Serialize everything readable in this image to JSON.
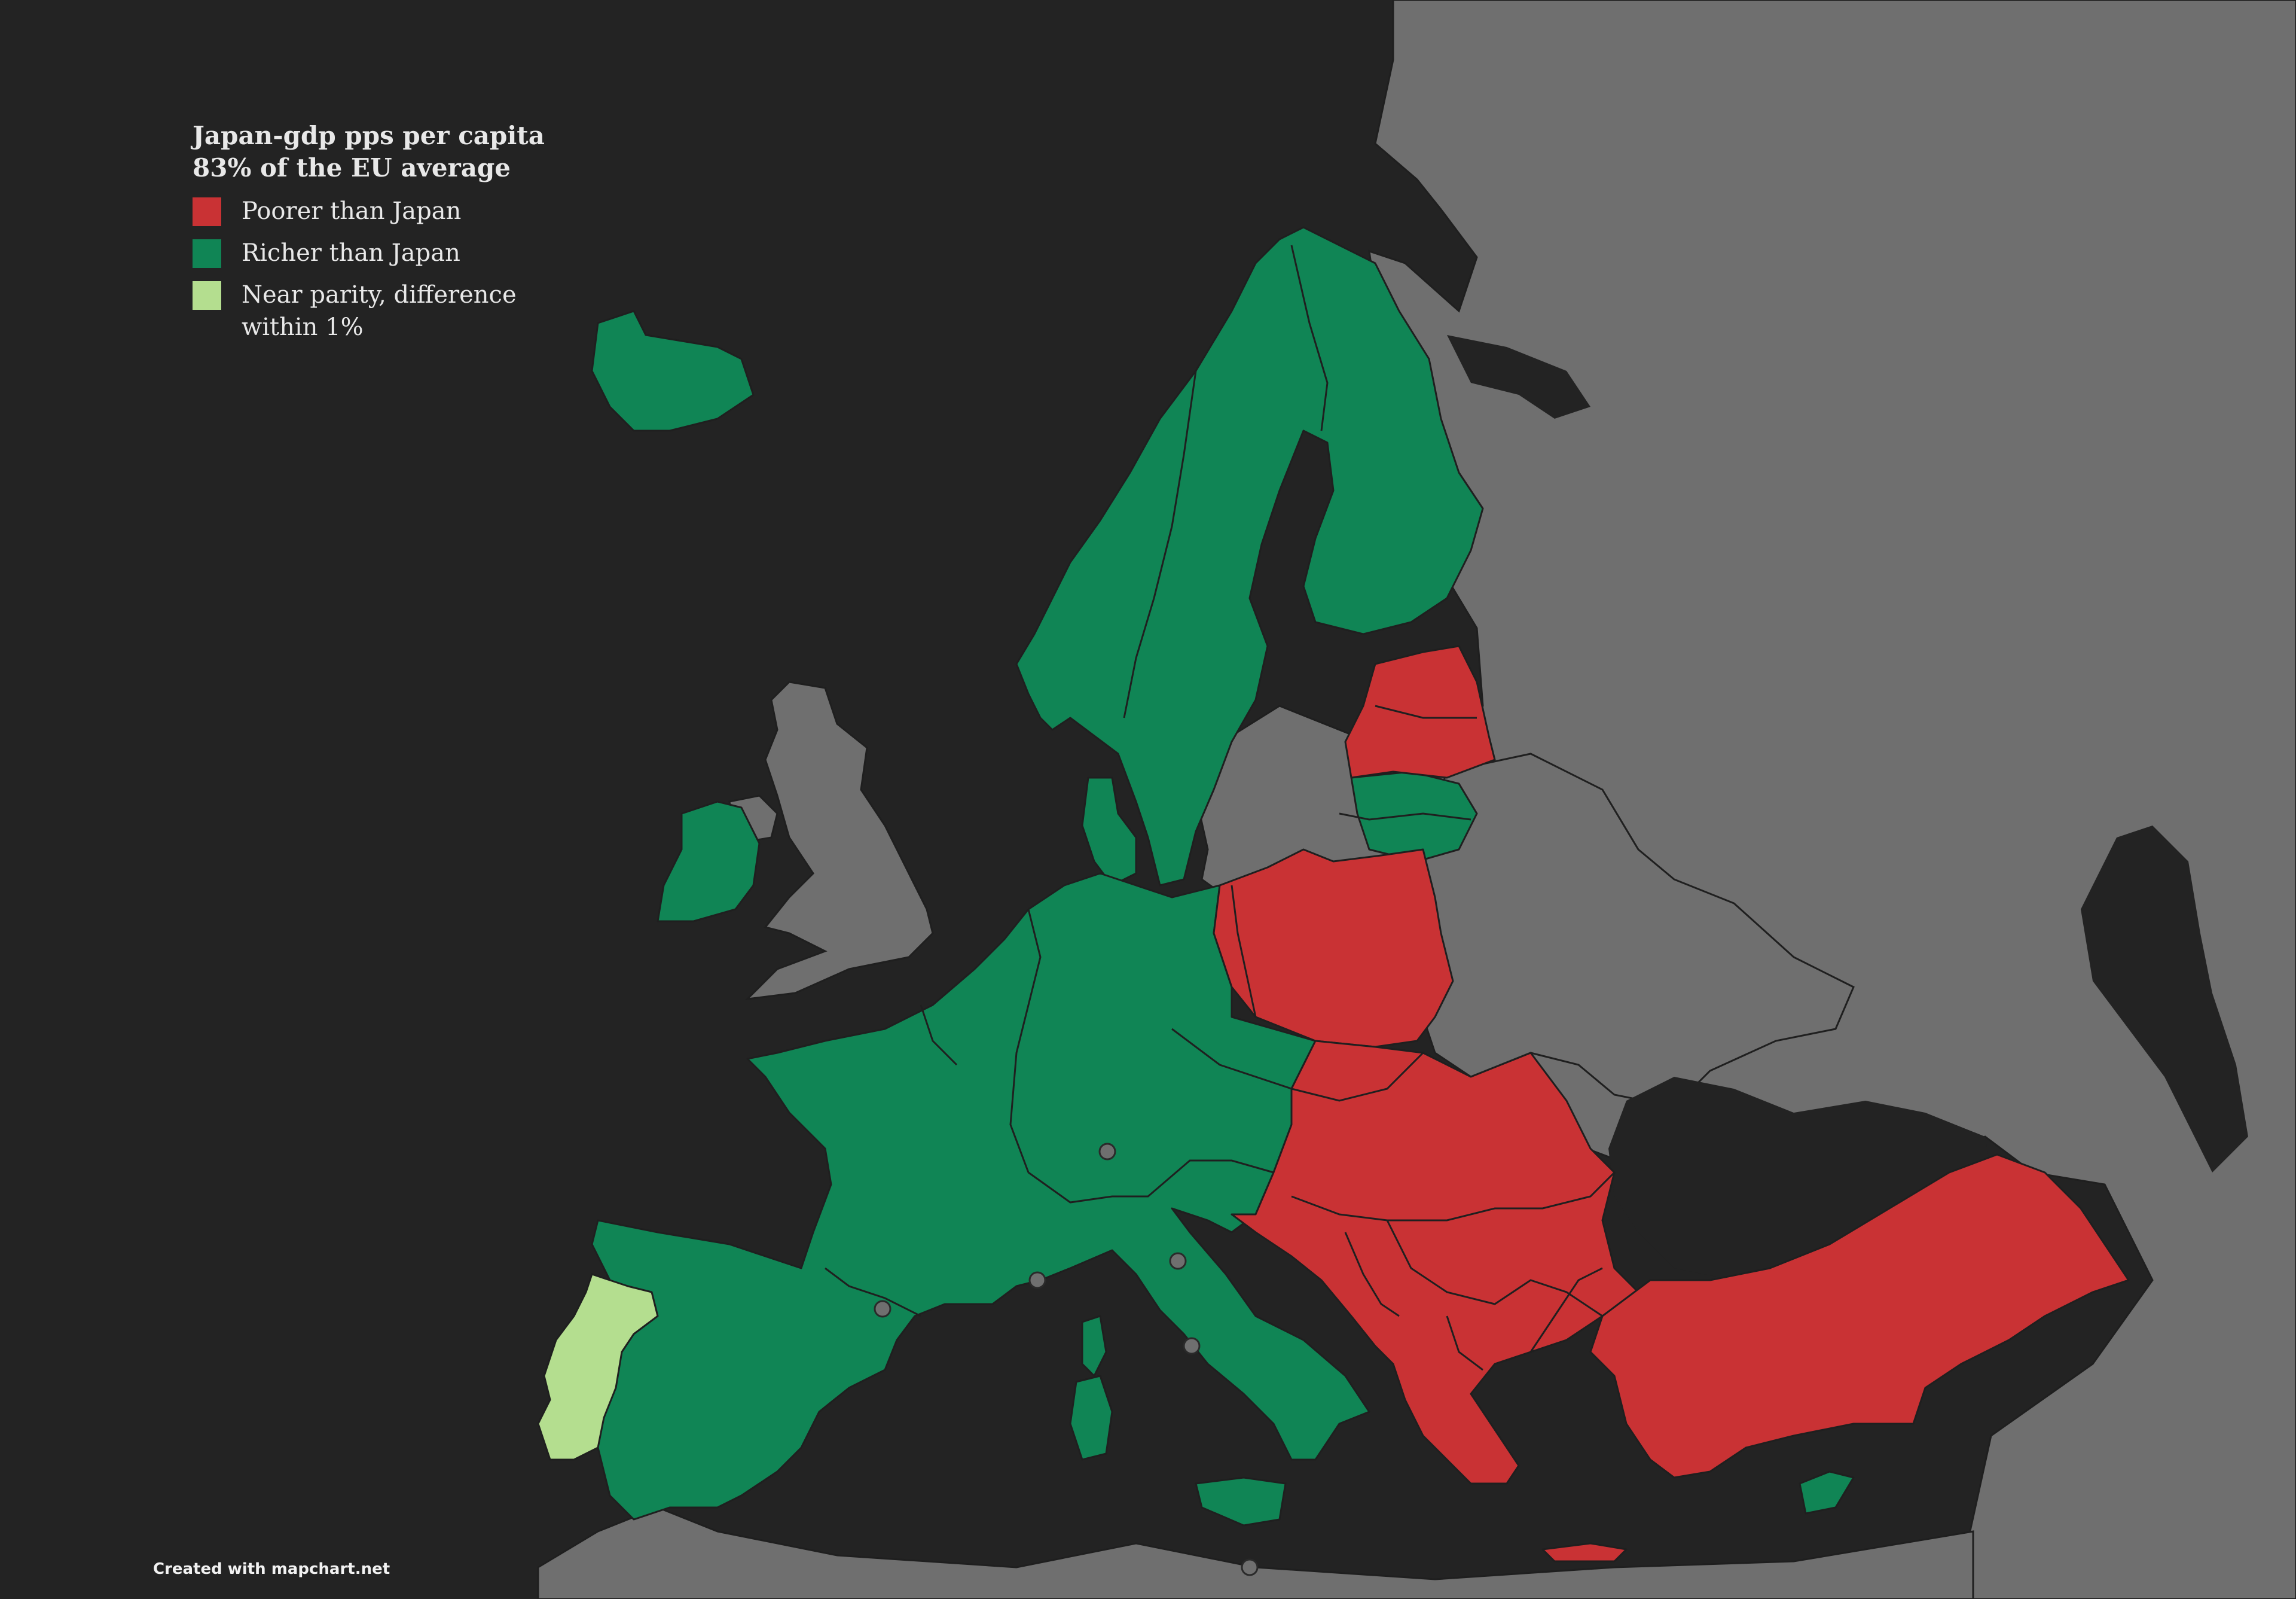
{
  "legend": {
    "title_line1": "Japan-gdp pps per capita",
    "title_line2": "83% of the EU average",
    "items": [
      {
        "label": "Poorer than Japan",
        "color": "#c93234"
      },
      {
        "label": "Richer than Japan",
        "color": "#108555"
      },
      {
        "label": "Near parity, difference within 1%",
        "color": "#b4de8f"
      }
    ]
  },
  "credit": "Created with mapchart.net",
  "colors": {
    "background": "#232323",
    "not_compared": "#6f6f6f",
    "poorer": "#c93234",
    "richer": "#108555",
    "near_parity": "#b4de8f"
  },
  "map_data": {
    "poorer": [
      "Estonia",
      "Latvia",
      "Poland",
      "Hungary",
      "Romania",
      "Croatia",
      "Bosnia and Herzegovina",
      "Serbia",
      "Montenegro",
      "Albania",
      "North Macedonia",
      "Bulgaria",
      "Greece",
      "Turkey"
    ],
    "richer": [
      "Iceland",
      "Norway",
      "Sweden",
      "Finland",
      "Denmark",
      "Ireland",
      "Netherlands",
      "Belgium",
      "Luxembourg",
      "Germany",
      "France",
      "Spain",
      "Italy",
      "Switzerland",
      "Austria",
      "Czechia",
      "Slovakia",
      "Slovenia",
      "Lithuania",
      "Malta",
      "Cyprus"
    ],
    "near_parity": [
      "Portugal"
    ]
  }
}
